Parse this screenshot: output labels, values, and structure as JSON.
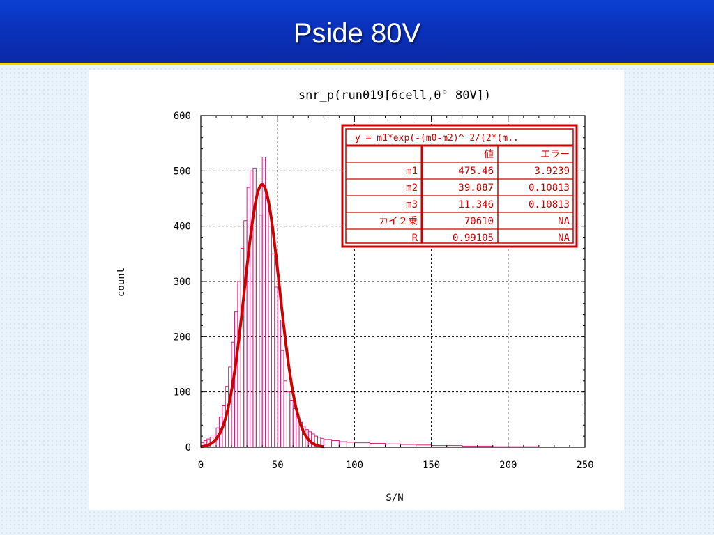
{
  "slide": {
    "title": "Pside 80V"
  },
  "chart_data": {
    "type": "bar",
    "title": "snr_p(run019[6cell,0° 80V])",
    "xlabel": "S/N",
    "ylabel": "count",
    "xlim": [
      0,
      250
    ],
    "ylim": [
      0,
      600
    ],
    "x_ticks": [
      0,
      50,
      100,
      150,
      200,
      250
    ],
    "y_ticks": [
      0,
      100,
      200,
      300,
      400,
      500,
      600
    ],
    "grid": true,
    "bin_width": 1,
    "histogram": {
      "name": "",
      "color": "#e0197a",
      "x": [
        0,
        2,
        4,
        6,
        8,
        10,
        12,
        14,
        16,
        18,
        20,
        22,
        24,
        26,
        28,
        30,
        32,
        34,
        36,
        38,
        40,
        42,
        44,
        46,
        48,
        50,
        52,
        54,
        56,
        58,
        60,
        62,
        64,
        66,
        68,
        70,
        72,
        74,
        76,
        78,
        80,
        85,
        90,
        95,
        100,
        110,
        120,
        130,
        140,
        150,
        160,
        170,
        180,
        190,
        200,
        210,
        220,
        230
      ],
      "values": [
        8,
        12,
        15,
        18,
        22,
        35,
        55,
        75,
        110,
        145,
        190,
        245,
        300,
        360,
        410,
        470,
        500,
        505,
        460,
        420,
        525,
        450,
        400,
        350,
        290,
        230,
        175,
        120,
        100,
        85,
        70,
        55,
        45,
        38,
        32,
        28,
        24,
        20,
        18,
        16,
        14,
        12,
        10,
        9,
        8,
        7,
        6,
        5,
        4,
        3,
        3,
        2,
        2,
        1,
        1,
        1,
        0,
        0
      ]
    },
    "fit": {
      "name": "",
      "color": "#cc0000",
      "formula": "gaussian",
      "m1": 475.46,
      "m2": 39.887,
      "m3": 11.346
    },
    "fit_table": {
      "equation": "y = m1*exp(-(m0-m2)^ 2/(2*(m..",
      "columns": [
        "",
        "値",
        "エラー"
      ],
      "rows": [
        [
          "m1",
          "475.46",
          "3.9239"
        ],
        [
          "m2",
          "39.887",
          "0.10813"
        ],
        [
          "m3",
          "11.346",
          "0.10813"
        ],
        [
          "カイ２乗",
          "70610",
          "NA"
        ],
        [
          "R",
          "0.99105",
          "NA"
        ]
      ],
      "color": "#cc0000"
    }
  }
}
